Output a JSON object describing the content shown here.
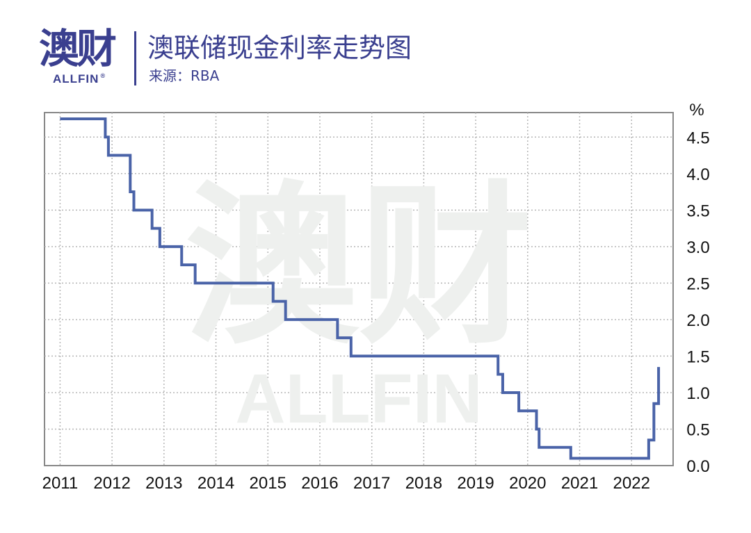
{
  "header": {
    "logo_text": "澳财",
    "logo_sub": "ALLFIN",
    "logo_reg": "®",
    "title": "澳联储现金利率走势图",
    "source": "来源：RBA"
  },
  "watermark": {
    "main": "澳财",
    "sub": "ALLFIN"
  },
  "colors": {
    "brand": "#3a3f8f",
    "line": "#4a63a8",
    "grid": "#b5b5b5",
    "axis": "#888888",
    "watermark": "#eef0ee"
  },
  "chart_data": {
    "type": "line",
    "step": true,
    "title": "澳联储现金利率走势图",
    "subtitle": "来源：RBA",
    "xlabel": "",
    "ylabel": "%",
    "y_axis_side": "right",
    "x_ticks": [
      "2011",
      "2012",
      "2013",
      "2014",
      "2015",
      "2016",
      "2017",
      "2018",
      "2019",
      "2020",
      "2021",
      "2022"
    ],
    "y_ticks": [
      "0.0",
      "0.5",
      "1.0",
      "1.5",
      "2.0",
      "2.5",
      "3.0",
      "3.5",
      "4.0",
      "4.5"
    ],
    "xlim": [
      2010.7,
      2022.8
    ],
    "ylim": [
      0,
      4.75
    ],
    "grid": true,
    "x": [
      2011.0,
      2011.87,
      2011.93,
      2012.35,
      2012.42,
      2012.77,
      2012.92,
      2013.34,
      2013.6,
      2015.1,
      2015.34,
      2016.34,
      2016.6,
      2019.43,
      2019.52,
      2019.83,
      2020.17,
      2020.22,
      2020.83,
      2022.33,
      2022.43,
      2022.52
    ],
    "values": [
      4.75,
      4.5,
      4.25,
      3.75,
      3.5,
      3.25,
      3.0,
      2.75,
      2.5,
      2.25,
      2.0,
      1.75,
      1.5,
      1.25,
      1.0,
      0.75,
      0.5,
      0.25,
      0.1,
      0.35,
      0.85,
      1.35
    ],
    "x_end": 2022.52
  }
}
